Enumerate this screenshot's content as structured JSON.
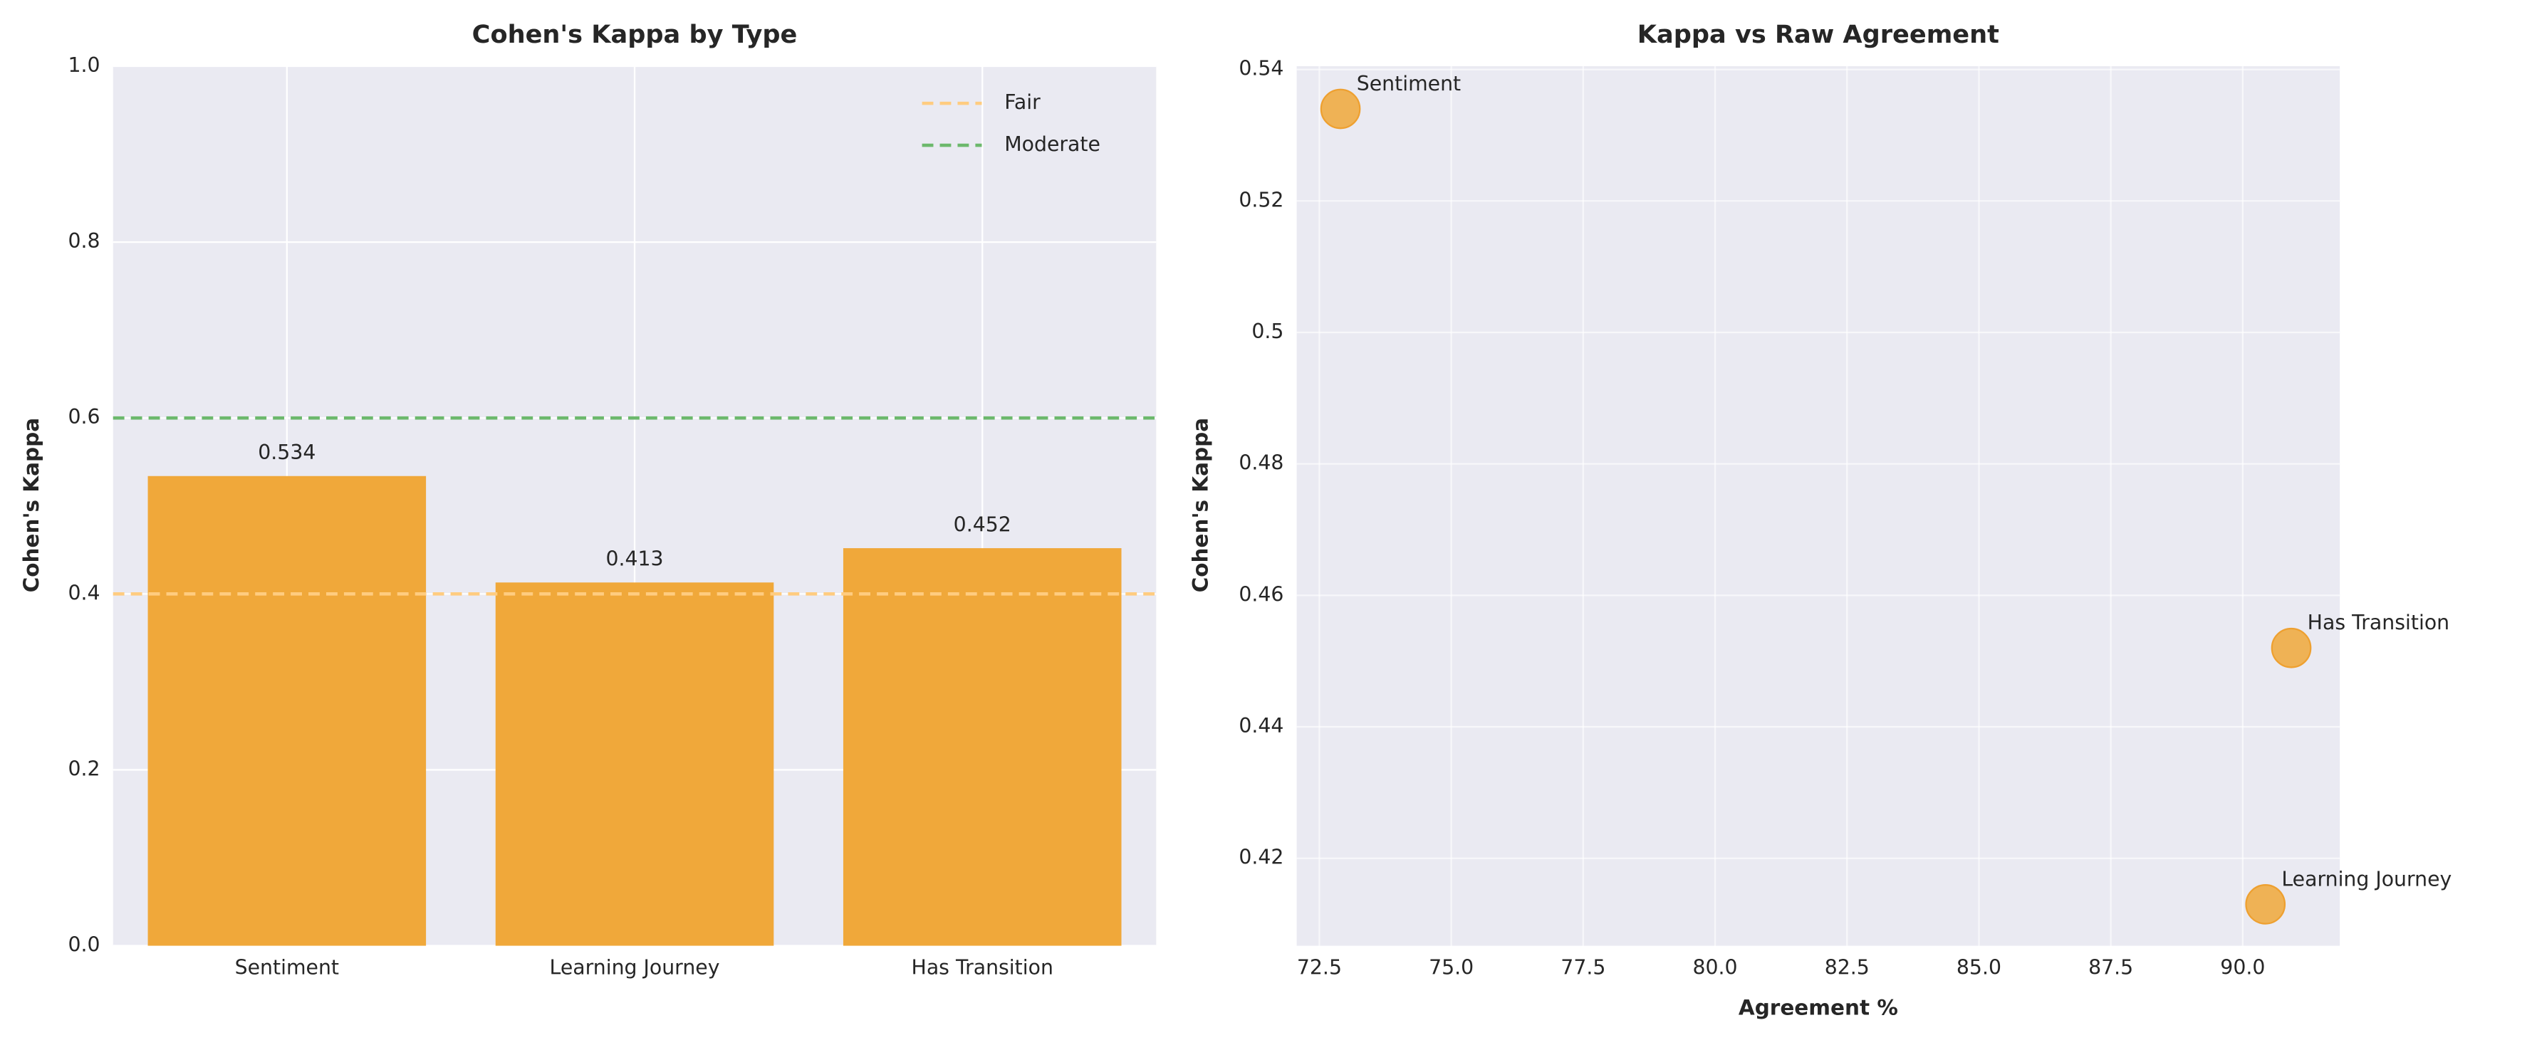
{
  "chart_data": [
    {
      "type": "bar",
      "title": "Cohen's Kappa by Type",
      "ylabel": "Cohen's Kappa",
      "categories": [
        "Sentiment",
        "Learning Journey",
        "Has Transition"
      ],
      "values": [
        0.534,
        0.413,
        0.452
      ],
      "color": "#f0a83a",
      "ylim": [
        0,
        1
      ],
      "yticks": [
        {
          "value": 0,
          "label": "0.0"
        },
        0.2,
        0.4,
        0.6,
        0.8,
        {
          "value": 1,
          "label": "1.0"
        }
      ],
      "hlines": [
        {
          "name": "Fair",
          "value": 0.4,
          "color": "#ffcc80"
        },
        {
          "name": "Moderate",
          "value": 0.6,
          "color": "#6cb86c"
        }
      ],
      "legend": "upper right",
      "grid": true
    },
    {
      "type": "scatter",
      "title": "Kappa vs Raw Agreement",
      "xlabel": "Agreement %",
      "ylabel": "Cohen's Kappa",
      "x": [
        72.9,
        90.43,
        90.92
      ],
      "y": [
        0.534,
        0.413,
        0.452
      ],
      "labels": [
        "Sentiment",
        "Learning Journey",
        "Has Transition"
      ],
      "color": "#f0a83a",
      "xlim": [
        72.07,
        91.84
      ],
      "ylim": [
        0.4067,
        0.5405
      ],
      "xticks": [
        72.5,
        {
          "value": 75,
          "label": "75.0"
        },
        77.5,
        {
          "value": 80,
          "label": "80.0"
        },
        82.5,
        {
          "value": 85,
          "label": "85.0"
        },
        87.5,
        {
          "value": 90,
          "label": "90.0"
        }
      ],
      "yticks": [
        0.42,
        0.44,
        0.46,
        0.48,
        0.5,
        0.52,
        0.54
      ],
      "grid": true
    }
  ]
}
